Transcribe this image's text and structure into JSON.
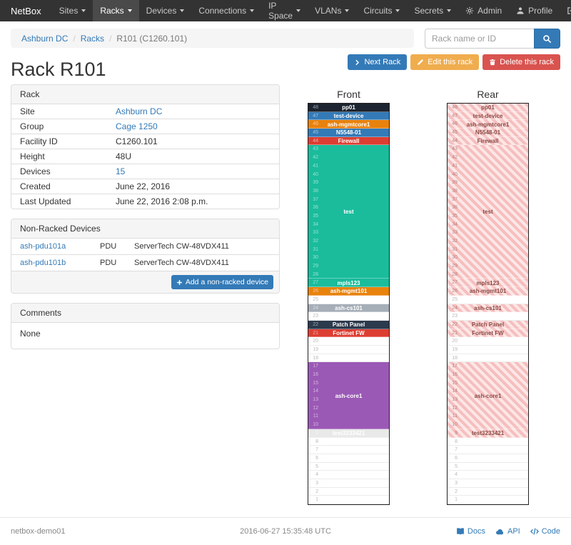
{
  "navbar": {
    "brand": "NetBox",
    "items": [
      {
        "label": "Sites",
        "active": false
      },
      {
        "label": "Racks",
        "active": true
      },
      {
        "label": "Devices",
        "active": false
      },
      {
        "label": "Connections",
        "active": false
      },
      {
        "label": "IP Space",
        "active": false
      },
      {
        "label": "VLANs",
        "active": false
      },
      {
        "label": "Circuits",
        "active": false
      },
      {
        "label": "Secrets",
        "active": false
      }
    ],
    "right": [
      {
        "label": "Admin",
        "icon": "gear"
      },
      {
        "label": "Profile",
        "icon": "user"
      },
      {
        "label": "Log out",
        "icon": "logout"
      }
    ]
  },
  "breadcrumb": {
    "items": [
      {
        "label": "Ashburn DC",
        "link": true
      },
      {
        "label": "Racks",
        "link": true
      },
      {
        "label": "R101 (C1260.101)",
        "link": false
      }
    ]
  },
  "search": {
    "placeholder": "Rack name or ID"
  },
  "actions": [
    {
      "label": "Next Rack",
      "icon": "chevron-right",
      "style": "primary"
    },
    {
      "label": "Edit this rack",
      "icon": "pencil",
      "style": "warning"
    },
    {
      "label": "Delete this rack",
      "icon": "trash",
      "style": "danger"
    }
  ],
  "colors": {
    "primary": "#337ab7",
    "warning": "#f0ad4e",
    "danger": "#d9534f",
    "link": "#337ab7"
  },
  "page_title": "Rack R101",
  "rack_panel": {
    "title": "Rack",
    "rows": [
      {
        "label": "Site",
        "value": "Ashburn DC",
        "link": true
      },
      {
        "label": "Group",
        "value": "Cage 1250",
        "link": true
      },
      {
        "label": "Facility ID",
        "value": "C1260.101",
        "link": false
      },
      {
        "label": "Height",
        "value": "48U",
        "link": false
      },
      {
        "label": "Devices",
        "value": "15",
        "link": true
      },
      {
        "label": "Created",
        "value": "June 22, 2016",
        "link": false
      },
      {
        "label": "Last Updated",
        "value": "June 22, 2016 2:08 p.m.",
        "link": false
      }
    ]
  },
  "nonracked_panel": {
    "title": "Non-Racked Devices",
    "rows": [
      {
        "name": "ash-pdu101a",
        "role": "PDU",
        "type": "ServerTech CW-48VDX411"
      },
      {
        "name": "ash-pdu101b",
        "role": "PDU",
        "type": "ServerTech CW-48VDX411"
      }
    ],
    "add_button": "Add a non-racked device"
  },
  "comments_panel": {
    "title": "Comments",
    "body": "None"
  },
  "rack_elevation": {
    "front_title": "Front",
    "rear_title": "Rear",
    "units_total": 48,
    "rear_label_color": "#8a4a44",
    "devices": [
      {
        "name": "pp01",
        "top_unit": 48,
        "height": 1,
        "color": "#1b2430",
        "text": "#ffffff"
      },
      {
        "name": "test-device",
        "top_unit": 47,
        "height": 1,
        "color": "#337ab7",
        "text": "#ffffff"
      },
      {
        "name": "ash-mgmtcore1",
        "top_unit": 46,
        "height": 1,
        "color": "#e8820e",
        "text": "#ffffff"
      },
      {
        "name": "N5548-01",
        "top_unit": 45,
        "height": 1,
        "color": "#337ab7",
        "text": "#ffffff"
      },
      {
        "name": "Firewall",
        "top_unit": 44,
        "height": 1,
        "color": "#dd3e32",
        "text": "#ffffff"
      },
      {
        "name": "test",
        "top_unit": 43,
        "height": 16,
        "color": "#1abc9c",
        "text": "#ffffff"
      },
      {
        "name": "mpls123",
        "top_unit": 27,
        "height": 1,
        "color": "#1abc9c",
        "text": "#ffffff"
      },
      {
        "name": "ash-mgmt101",
        "top_unit": 26,
        "height": 1,
        "color": "#e8820e",
        "text": "#ffffff"
      },
      {
        "name": "ash-cs101",
        "top_unit": 24,
        "height": 1,
        "color": "#a6aeb8",
        "text": "#ffffff"
      },
      {
        "name": "Patch Panel",
        "top_unit": 22,
        "height": 1,
        "color": "#2b3a4d",
        "text": "#ffffff"
      },
      {
        "name": "Fortinet FW",
        "top_unit": 21,
        "height": 1,
        "color": "#dd3e32",
        "text": "#ffffff"
      },
      {
        "name": "ash-core1",
        "top_unit": 17,
        "height": 8,
        "color": "#9b59b6",
        "text": "#ffffff"
      },
      {
        "name": "test3233421",
        "top_unit": 9,
        "height": 1,
        "color": "#e9e9e9",
        "text": "#ffffff"
      }
    ]
  },
  "footer": {
    "hostname": "netbox-demo01",
    "timestamp": "2016-06-27 15:35:48 UTC",
    "links": [
      {
        "label": "Docs",
        "icon": "book"
      },
      {
        "label": "API",
        "icon": "cloud"
      },
      {
        "label": "Code",
        "icon": "code"
      }
    ]
  }
}
